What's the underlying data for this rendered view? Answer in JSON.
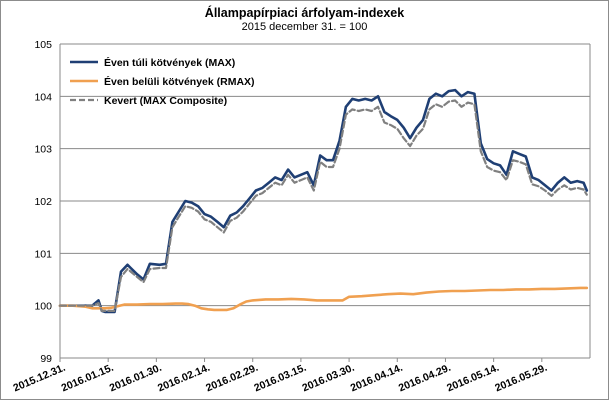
{
  "chart_data": {
    "type": "line",
    "title": "Állampapírpiaci árfolyam-indexek",
    "subtitle": "2015 december 31. = 100",
    "xlabel": "",
    "ylabel": "",
    "ylim": [
      99,
      105
    ],
    "yticks": [
      99,
      100,
      101,
      102,
      103,
      104,
      105
    ],
    "grid": true,
    "legend_position": "top-left",
    "x_tick_labels": [
      "2015.12.31.",
      "2016.01.15.",
      "2016.01.30.",
      "2016.02.14.",
      "2016.02.29.",
      "2016.03.15.",
      "2016.03.30.",
      "2016.04.14.",
      "2016.04.29.",
      "2016.05.14.",
      "2016.05.29."
    ],
    "x_range": [
      0,
      165
    ],
    "series": [
      {
        "name": "Éven túli kötvények (MAX)",
        "color": "#1f3f74",
        "dashed": false,
        "x": [
          0,
          4,
          7,
          10,
          12,
          13,
          14,
          15,
          17,
          19,
          21,
          22,
          24,
          26,
          28,
          31,
          33,
          35,
          37,
          39,
          41,
          43,
          45,
          47,
          49,
          51,
          53,
          55,
          57,
          59,
          61,
          63,
          65,
          67,
          69,
          71,
          73,
          75,
          77,
          79,
          81,
          83,
          85,
          87,
          89,
          91,
          93,
          95,
          97,
          99,
          101,
          103,
          105,
          107,
          109,
          111,
          113,
          115,
          117,
          119,
          121,
          123,
          125,
          127,
          129,
          131,
          133,
          135,
          137,
          139,
          141,
          143,
          145,
          147,
          149,
          151,
          153,
          155,
          157,
          159,
          161,
          163,
          164
        ],
        "y": [
          100.0,
          100.0,
          100.0,
          100.0,
          100.1,
          99.9,
          99.88,
          99.88,
          99.88,
          100.65,
          100.78,
          100.72,
          100.6,
          100.5,
          100.8,
          100.78,
          100.8,
          101.6,
          101.8,
          102.0,
          101.97,
          101.9,
          101.75,
          101.7,
          101.6,
          101.5,
          101.72,
          101.78,
          101.9,
          102.05,
          102.2,
          102.25,
          102.35,
          102.45,
          102.4,
          102.6,
          102.45,
          102.5,
          102.55,
          102.3,
          102.87,
          102.78,
          102.78,
          103.15,
          103.8,
          103.95,
          103.92,
          103.95,
          103.92,
          104.0,
          103.7,
          103.62,
          103.55,
          103.4,
          103.2,
          103.4,
          103.55,
          103.95,
          104.05,
          104.0,
          104.1,
          104.12,
          104.0,
          104.08,
          104.05,
          103.1,
          102.8,
          102.72,
          102.68,
          102.5,
          102.95,
          102.9,
          102.85,
          102.45,
          102.4,
          102.3,
          102.2,
          102.35,
          102.45,
          102.35,
          102.38,
          102.35,
          102.2
        ]
      },
      {
        "name": "Éven belüli kötvények (RMAX)",
        "color": "#f0a050",
        "dashed": false,
        "x": [
          0,
          4,
          8,
          10,
          12,
          14,
          16,
          20,
          24,
          28,
          32,
          36,
          38,
          40,
          42,
          44,
          46,
          48,
          50,
          52,
          54,
          56,
          58,
          60,
          64,
          68,
          72,
          76,
          80,
          84,
          88,
          90,
          94,
          98,
          102,
          106,
          110,
          114,
          118,
          122,
          126,
          130,
          134,
          138,
          142,
          146,
          150,
          154,
          158,
          162,
          164
        ],
        "y": [
          100.0,
          100.0,
          99.98,
          99.95,
          99.95,
          99.95,
          99.96,
          100.02,
          100.02,
          100.03,
          100.03,
          100.04,
          100.04,
          100.03,
          100.0,
          99.95,
          99.93,
          99.92,
          99.92,
          99.92,
          99.95,
          100.02,
          100.08,
          100.1,
          100.12,
          100.12,
          100.13,
          100.12,
          100.1,
          100.1,
          100.1,
          100.17,
          100.18,
          100.2,
          100.22,
          100.23,
          100.22,
          100.25,
          100.27,
          100.28,
          100.28,
          100.29,
          100.3,
          100.3,
          100.31,
          100.31,
          100.32,
          100.32,
          100.33,
          100.34,
          100.34
        ]
      },
      {
        "name": "Kevert (MAX Composite)",
        "color": "#808080",
        "dashed": true,
        "x": [
          0,
          4,
          7,
          10,
          12,
          13,
          14,
          15,
          17,
          19,
          21,
          22,
          24,
          26,
          28,
          31,
          33,
          35,
          37,
          39,
          41,
          43,
          45,
          47,
          49,
          51,
          53,
          55,
          57,
          59,
          61,
          63,
          65,
          67,
          69,
          71,
          73,
          75,
          77,
          79,
          81,
          83,
          85,
          87,
          89,
          91,
          93,
          95,
          97,
          99,
          101,
          103,
          105,
          107,
          109,
          111,
          113,
          115,
          117,
          119,
          121,
          123,
          125,
          127,
          129,
          131,
          133,
          135,
          137,
          139,
          141,
          143,
          145,
          147,
          149,
          151,
          153,
          155,
          157,
          159,
          161,
          163,
          164
        ],
        "y": [
          100.0,
          100.0,
          100.0,
          100.0,
          100.05,
          99.9,
          99.9,
          99.9,
          99.9,
          100.55,
          100.7,
          100.65,
          100.55,
          100.45,
          100.7,
          100.72,
          100.72,
          101.5,
          101.7,
          101.9,
          101.87,
          101.8,
          101.65,
          101.6,
          101.5,
          101.4,
          101.62,
          101.68,
          101.8,
          101.95,
          102.1,
          102.15,
          102.25,
          102.35,
          102.3,
          102.5,
          102.35,
          102.4,
          102.45,
          102.2,
          102.75,
          102.65,
          102.65,
          103.0,
          103.65,
          103.75,
          103.72,
          103.75,
          103.72,
          103.8,
          103.5,
          103.45,
          103.38,
          103.2,
          103.05,
          103.25,
          103.38,
          103.75,
          103.85,
          103.8,
          103.9,
          103.92,
          103.8,
          103.88,
          103.85,
          102.95,
          102.65,
          102.58,
          102.55,
          102.4,
          102.78,
          102.75,
          102.7,
          102.32,
          102.28,
          102.2,
          102.1,
          102.22,
          102.3,
          102.22,
          102.25,
          102.22,
          102.12
        ]
      }
    ]
  }
}
